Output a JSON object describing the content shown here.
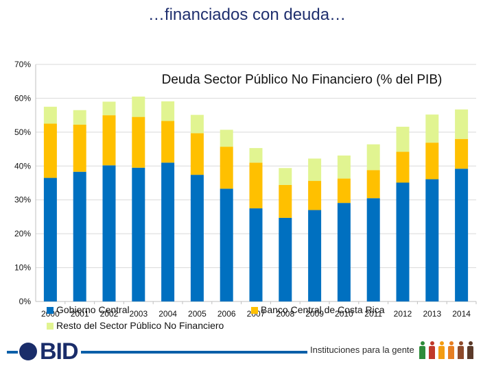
{
  "slide": {
    "title": "…financiados con deuda…"
  },
  "chart_data": {
    "type": "bar",
    "stacked": true,
    "title": "Deuda Sector Público No Financiero (% del PIB)",
    "categories": [
      "2000",
      "2001",
      "2002",
      "2003",
      "2004",
      "2005",
      "2006",
      "2007",
      "2008",
      "2009",
      "2010",
      "2011",
      "2012",
      "2013",
      "2014"
    ],
    "series": [
      {
        "name": "Gobierno Central",
        "color": "#0070c0",
        "values": [
          36.5,
          38.3,
          40.2,
          39.5,
          41.0,
          37.4,
          33.3,
          27.5,
          24.7,
          27.0,
          29.1,
          30.5,
          35.1,
          36.1,
          39.2
        ]
      },
      {
        "name": "Banco Central de Costa Rica",
        "color": "#ffc000",
        "values": [
          16.0,
          13.9,
          14.8,
          15.0,
          12.3,
          12.3,
          12.4,
          13.5,
          9.7,
          8.6,
          7.2,
          8.3,
          9.1,
          10.8,
          8.8
        ]
      },
      {
        "name": "Resto del Sector Público No Financiero",
        "color": "#e1f491",
        "values": [
          5.0,
          4.3,
          4.0,
          6.0,
          5.8,
          5.4,
          5.0,
          4.3,
          5.0,
          6.6,
          6.8,
          7.6,
          7.4,
          8.3,
          8.7
        ]
      }
    ],
    "ylim": [
      0,
      70
    ],
    "yticks": [
      "0%",
      "10%",
      "20%",
      "30%",
      "40%",
      "50%",
      "60%",
      "70%"
    ],
    "ytick_values": [
      0,
      10,
      20,
      30,
      40,
      50,
      60,
      70
    ],
    "grid": true,
    "legend": "bottom"
  },
  "footer": {
    "logo_text": "BID",
    "tagline": "Instituciones para la gente",
    "people_colors": [
      "#2e8b3a",
      "#c0392b",
      "#f39c12",
      "#e67e22",
      "#8e4a2b",
      "#5b3a29"
    ]
  }
}
